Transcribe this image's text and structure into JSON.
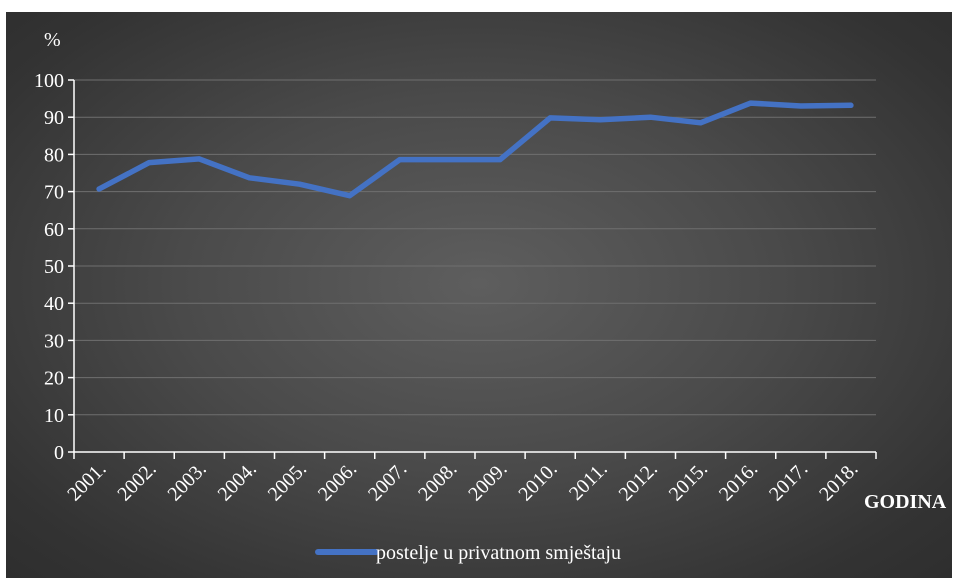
{
  "chart_data": {
    "type": "line",
    "title": "",
    "ylabel": "%",
    "xlabel": "GODINA",
    "ylim": [
      0,
      100
    ],
    "yticks": [
      0,
      10,
      20,
      30,
      40,
      50,
      60,
      70,
      80,
      90,
      100
    ],
    "grid": true,
    "legend_position": "bottom",
    "categories": [
      "2001.",
      "2002.",
      "2003.",
      "2004.",
      "2005.",
      "2006.",
      "2007.",
      "2008.",
      "2009.",
      "2010.",
      "2011.",
      "2012.",
      "2015.",
      "2016.",
      "2017.",
      "2018."
    ],
    "series": [
      {
        "name": "postelje u privatnom smještaju",
        "color": "#4472c4",
        "values": [
          70.7,
          77.8,
          78.8,
          73.7,
          72.0,
          68.9,
          78.6,
          78.6,
          78.6,
          89.8,
          89.3,
          90.0,
          88.5,
          93.8,
          93.0,
          93.2
        ]
      }
    ]
  }
}
